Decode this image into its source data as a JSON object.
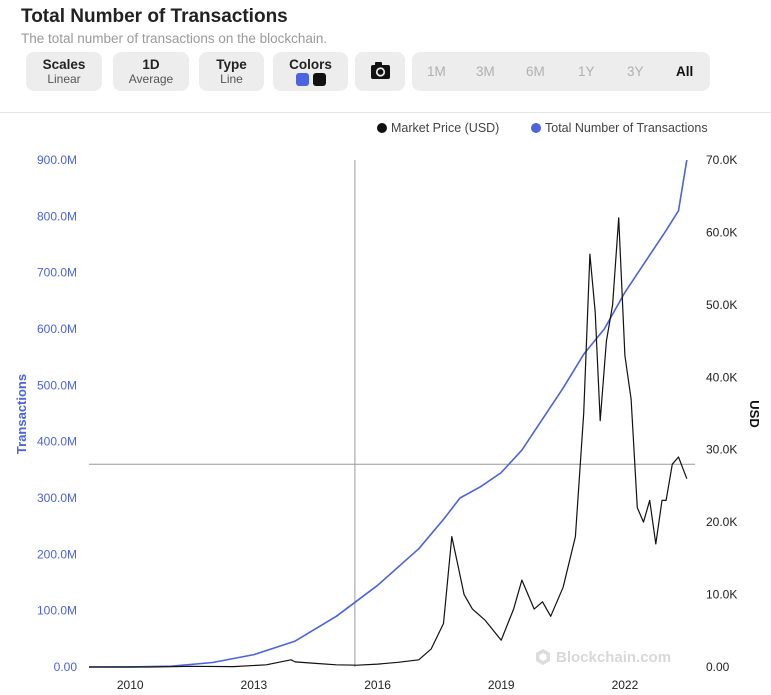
{
  "header": {
    "title": "Total Number of Transactions",
    "subtitle": "The total number of transactions on the blockchain."
  },
  "controls": {
    "scales": {
      "label": "Scales",
      "value": "Linear"
    },
    "interval": {
      "label": "1D",
      "value": "Average"
    },
    "type": {
      "label": "Type",
      "value": "Line"
    },
    "colors": {
      "label": "Colors",
      "swatches": [
        "#4b63dc",
        "#111111"
      ]
    },
    "camera_icon": "camera-icon",
    "ranges": [
      "1M",
      "3M",
      "6M",
      "1Y",
      "3Y",
      "All"
    ],
    "active_range": "All"
  },
  "chart_data": {
    "type": "line",
    "legend": [
      {
        "name": "Market Price (USD)",
        "color": "#111111"
      },
      {
        "name": "Total Number of Transactions",
        "color": "#4b63dc"
      }
    ],
    "ylabel_left": "Transactions",
    "ylabel_right": "USD",
    "left_ticks": [
      "0.00",
      "100.0M",
      "200.0M",
      "300.0M",
      "400.0M",
      "500.0M",
      "600.0M",
      "700.0M",
      "800.0M",
      "900.0M"
    ],
    "right_ticks": [
      "0.00",
      "10.0K",
      "20.0K",
      "30.0K",
      "40.0K",
      "50.0K",
      "60.0K",
      "70.0K"
    ],
    "x_ticks": [
      "2010",
      "2013",
      "2016",
      "2019",
      "2022"
    ],
    "xlim": [
      2009.0,
      2023.7
    ],
    "ylim_left": [
      0,
      900000000
    ],
    "ylim_right": [
      0,
      70000
    ],
    "crosshair": {
      "x": 2015.45,
      "y_left": 360000000
    },
    "series": [
      {
        "name": "Total Number of Transactions",
        "axis": "left",
        "color": "#4b63dc",
        "x": [
          2009.0,
          2010.0,
          2011.0,
          2012.0,
          2013.0,
          2014.0,
          2015.0,
          2016.0,
          2017.0,
          2017.6,
          2018.0,
          2018.5,
          2019.0,
          2019.5,
          2020.0,
          2020.5,
          2021.0,
          2021.5,
          2022.0,
          2022.5,
          2023.0,
          2023.3,
          2023.5
        ],
        "values": [
          0,
          200000,
          1500000,
          8000000,
          22000000,
          46000000,
          90000000,
          145000000,
          210000000,
          262000000,
          300000000,
          320000000,
          345000000,
          385000000,
          440000000,
          495000000,
          555000000,
          600000000,
          665000000,
          720000000,
          775000000,
          810000000,
          900000000
        ]
      },
      {
        "name": "Market Price (USD)",
        "axis": "right",
        "color": "#111111",
        "x": [
          2009.0,
          2010.5,
          2011.5,
          2012.5,
          2013.3,
          2013.9,
          2014.0,
          2014.5,
          2015.0,
          2015.5,
          2016.0,
          2016.5,
          2017.0,
          2017.3,
          2017.6,
          2017.8,
          2017.95,
          2018.1,
          2018.3,
          2018.6,
          2019.0,
          2019.3,
          2019.5,
          2019.8,
          2020.0,
          2020.2,
          2020.5,
          2020.8,
          2021.0,
          2021.15,
          2021.28,
          2021.4,
          2021.55,
          2021.7,
          2021.85,
          2022.0,
          2022.15,
          2022.3,
          2022.45,
          2022.6,
          2022.75,
          2022.9,
          2023.0,
          2023.15,
          2023.3,
          2023.5
        ],
        "values": [
          0,
          0,
          100,
          50,
          300,
          1000,
          700,
          500,
          300,
          250,
          400,
          650,
          1000,
          2500,
          6000,
          18000,
          14000,
          10000,
          8000,
          6500,
          3700,
          8000,
          12000,
          8000,
          9000,
          7000,
          11000,
          18000,
          35000,
          57000,
          49000,
          34000,
          45000,
          50000,
          62000,
          43000,
          37000,
          22000,
          20000,
          23000,
          17000,
          23000,
          23000,
          28000,
          29000,
          26000
        ]
      }
    ]
  },
  "watermark": "Blockchain.com"
}
